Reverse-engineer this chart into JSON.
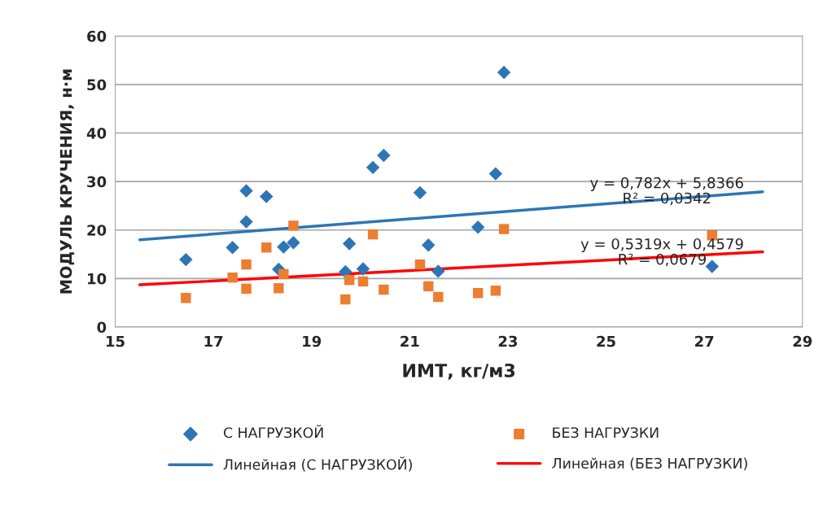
{
  "chart_data": {
    "type": "scatter",
    "xlabel": "ИМТ, кг/м3",
    "ylabel": "МОДУЛЬ КРУЧЕНИЯ, н·м",
    "xlim": [
      15,
      29
    ],
    "xticks": [
      15,
      17,
      19,
      21,
      23,
      25,
      27,
      29
    ],
    "ylim": [
      0,
      60
    ],
    "yticks": [
      0,
      10,
      20,
      30,
      40,
      50,
      60
    ],
    "grid": "y",
    "legend": "bottom",
    "series": [
      {
        "name": "С НАГРУЗКОЙ",
        "marker": "diamond",
        "color": "#2e75b6",
        "x": [
          16.44,
          17.39,
          17.67,
          17.67,
          18.08,
          18.33,
          18.43,
          18.63,
          19.69,
          19.77,
          20.05,
          20.25,
          20.47,
          21.21,
          21.38,
          21.58,
          22.39,
          22.75,
          22.92,
          27.16
        ],
        "values": [
          13.9,
          16.4,
          21.7,
          28.1,
          26.9,
          11.9,
          16.5,
          17.4,
          11.4,
          17.2,
          12.0,
          32.9,
          35.4,
          27.7,
          16.9,
          11.5,
          20.6,
          31.6,
          52.5,
          12.5
        ]
      },
      {
        "name": "БЕЗ НАГРУЗКИ",
        "marker": "square",
        "color": "#ed7d31",
        "x": [
          16.44,
          17.39,
          17.67,
          17.67,
          18.08,
          18.33,
          18.43,
          18.63,
          19.69,
          19.77,
          20.05,
          20.25,
          20.47,
          21.21,
          21.38,
          21.58,
          22.39,
          22.75,
          22.92,
          27.16
        ],
        "values": [
          6.0,
          10.2,
          7.9,
          12.9,
          16.4,
          8.0,
          10.9,
          20.9,
          5.7,
          9.7,
          9.4,
          19.1,
          7.7,
          12.9,
          8.4,
          6.2,
          7.0,
          7.5,
          20.2,
          18.9
        ]
      },
      {
        "name": "Линейная (С НАГРУЗКОЙ)",
        "type": "line",
        "color": "#2e75b6",
        "x": [
          15.5,
          28.19
        ],
        "values": [
          18.0,
          27.9
        ]
      },
      {
        "name": "Линейная (БЕЗ НАГРУЗКИ)",
        "type": "line",
        "color": "#ff0000",
        "x": [
          15.5,
          28.19
        ],
        "values": [
          8.7,
          15.5
        ]
      }
    ],
    "annotations": [
      "y = 0,782x + 5,8366\nR² = 0,0342",
      "y = 0,5319x + 0,4579\nR² = 0,0679"
    ]
  }
}
